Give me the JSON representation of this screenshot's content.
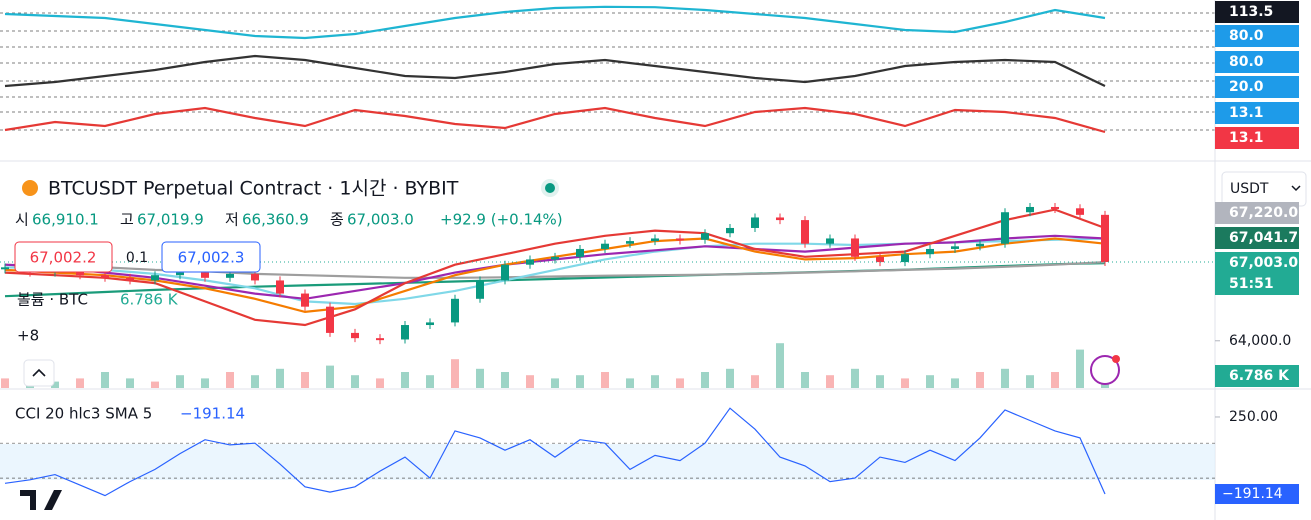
{
  "header": {
    "title": "BTCUSDT Perpetual Contract · 1시간 · BYBIT",
    "ohlc": [
      {
        "label": "시",
        "value": "66,910.1"
      },
      {
        "label": "고",
        "value": "67,019.9"
      },
      {
        "label": "저",
        "value": "66,360.9"
      },
      {
        "label": "종",
        "value": "67,003.0"
      }
    ],
    "change": "+92.9 (+0.14%)"
  },
  "order": {
    "sell": "67,002.2",
    "qty": "0.1",
    "buy": "67,002.3"
  },
  "volume_legend": {
    "label": "볼륨 · BTC",
    "value": "6.786 K"
  },
  "more": "+8",
  "currency": "USDT",
  "oscillator_axis": [
    {
      "label": "113.5",
      "color": "#131722"
    },
    {
      "label": "80.0",
      "color": "#1e9be9"
    },
    {
      "label": "80.0",
      "color": "#1e9be9"
    },
    {
      "label": "20.0",
      "color": "#1e9be9"
    },
    {
      "label": "13.1",
      "color": "#1e9be9"
    },
    {
      "label": "13.1",
      "color": "#f23645"
    }
  ],
  "price_axis": [
    {
      "label": "67,220.0",
      "color": "#b2b5be"
    },
    {
      "label": "67,041.7",
      "color": "#1b7a5e"
    },
    {
      "label": "67,003.0",
      "color": "#22ab94"
    },
    {
      "label": "51:51",
      "color": "#22ab94"
    },
    {
      "label": "6.786 K",
      "color": "#22ab94"
    }
  ],
  "cci_legend": {
    "label": "CCI 20 hlc3 SMA 5",
    "value": "−191.14"
  },
  "cci_axis_last": "−191.14",
  "chart_data": [
    {
      "type": "candlestick",
      "closes": [
        66800,
        66600,
        66700,
        66500,
        66400,
        66300,
        66500,
        66600,
        66400,
        66550,
        66300,
        65800,
        65300,
        64300,
        64100,
        64050,
        64600,
        64700,
        65600,
        66300,
        66900,
        67100,
        67200,
        67500,
        67700,
        67800,
        67900,
        67850,
        68100,
        68300,
        68700,
        68600,
        67700,
        67900,
        67200,
        67000,
        67300,
        67500,
        67600,
        67700,
        68900,
        69100,
        69050,
        68800,
        67003
      ],
      "up_color": "#089981",
      "down_color": "#f23645",
      "ylim": [
        62200,
        70700
      ],
      "yticks": [
        {
          "value": 64000,
          "label": "64,000.0"
        }
      ],
      "series": [
        {
          "color": "#1a9b7a",
          "values": [
            65700,
            65780,
            65860,
            65940,
            66000,
            66060,
            66110,
            66160,
            66210,
            66260,
            66310,
            66360,
            66410,
            66460,
            66510,
            66560,
            66610,
            66660,
            66710,
            66780,
            66850,
            66920,
            66960
          ]
        },
        {
          "color": "#9e9e9e",
          "values": [
            66900,
            66850,
            66800,
            66700,
            66650,
            66550,
            66500,
            66450,
            66400,
            66400,
            66420,
            66450,
            66480,
            66500,
            66520,
            66550,
            66600,
            66650,
            66700,
            66750,
            66820,
            66900,
            67000
          ]
        },
        {
          "color": "#80d8e8",
          "values": [
            66800,
            66750,
            66700,
            66550,
            66300,
            66000,
            65500,
            65400,
            65600,
            65900,
            66300,
            66700,
            67100,
            67400,
            67600,
            67700,
            67700,
            67650,
            67700,
            67750,
            67800,
            67850,
            67900
          ]
        },
        {
          "color": "#9c27b0",
          "values": [
            66900,
            66800,
            66600,
            66400,
            66100,
            65800,
            65600,
            65900,
            66200,
            66600,
            66900,
            67100,
            67300,
            67450,
            67600,
            67500,
            67400,
            67550,
            67700,
            67750,
            67900,
            68000,
            67900
          ]
        },
        {
          "color": "#f57c00",
          "values": [
            66700,
            66600,
            66500,
            66300,
            66000,
            65600,
            65100,
            65300,
            65900,
            66500,
            66900,
            67200,
            67500,
            67800,
            67900,
            67400,
            67100,
            67150,
            67300,
            67400,
            67700,
            67900,
            67700
          ]
        },
        {
          "color": "#e53935",
          "values": [
            66600,
            66500,
            66400,
            66200,
            65500,
            64800,
            64600,
            65200,
            66200,
            66900,
            67300,
            67700,
            68000,
            68200,
            68100,
            67500,
            67200,
            67300,
            67400,
            68000,
            68600,
            69000,
            68300
          ]
        }
      ]
    },
    {
      "type": "bar",
      "values": [
        3,
        4,
        2,
        3,
        5,
        3,
        2,
        4,
        3,
        5,
        4,
        6,
        5,
        7,
        4,
        3,
        5,
        4,
        9,
        6,
        5,
        4,
        3,
        4,
        5,
        3,
        4,
        3,
        5,
        6,
        4,
        14,
        5,
        4,
        6,
        4,
        3,
        4,
        3,
        5,
        6,
        4,
        5,
        12,
        6.786
      ],
      "colors": [
        "#f7a1a1",
        "#84c9b8"
      ],
      "ylim": [
        0,
        25
      ]
    },
    {
      "type": "line",
      "values": [
        -130,
        -110,
        -80,
        -140,
        -200,
        -120,
        -50,
        40,
        120,
        90,
        100,
        -20,
        -150,
        -180,
        -150,
        -60,
        20,
        -100,
        170,
        130,
        60,
        120,
        20,
        120,
        100,
        -50,
        30,
        0,
        100,
        300,
        180,
        20,
        -30,
        -120,
        -100,
        20,
        -10,
        60,
        0,
        130,
        290,
        230,
        170,
        130,
        -191.14
      ],
      "color": "#2962ff",
      "ylim": [
        -340,
        393
      ],
      "yticks": [
        {
          "value": 250,
          "label": "250.00"
        }
      ],
      "bands": [
        100,
        -100
      ]
    },
    {
      "type": "oscillators",
      "ylim": [
        0,
        100
      ],
      "series": [
        {
          "color": "#1fb5d2",
          "values": [
            80,
            75,
            70,
            55,
            40,
            25,
            20,
            30,
            50,
            70,
            85,
            95,
            98,
            97,
            90,
            80,
            70,
            55,
            40,
            35,
            60,
            90,
            70
          ]
        },
        {
          "color": "#333333",
          "values": [
            20,
            30,
            45,
            60,
            80,
            95,
            85,
            65,
            45,
            40,
            55,
            75,
            85,
            70,
            55,
            40,
            30,
            45,
            70,
            80,
            85,
            80,
            20
          ]
        },
        {
          "color": "#e53935",
          "values": [
            30,
            50,
            40,
            70,
            85,
            60,
            40,
            80,
            65,
            45,
            35,
            70,
            85,
            60,
            40,
            75,
            85,
            70,
            40,
            80,
            75,
            60,
            25
          ]
        }
      ]
    }
  ]
}
